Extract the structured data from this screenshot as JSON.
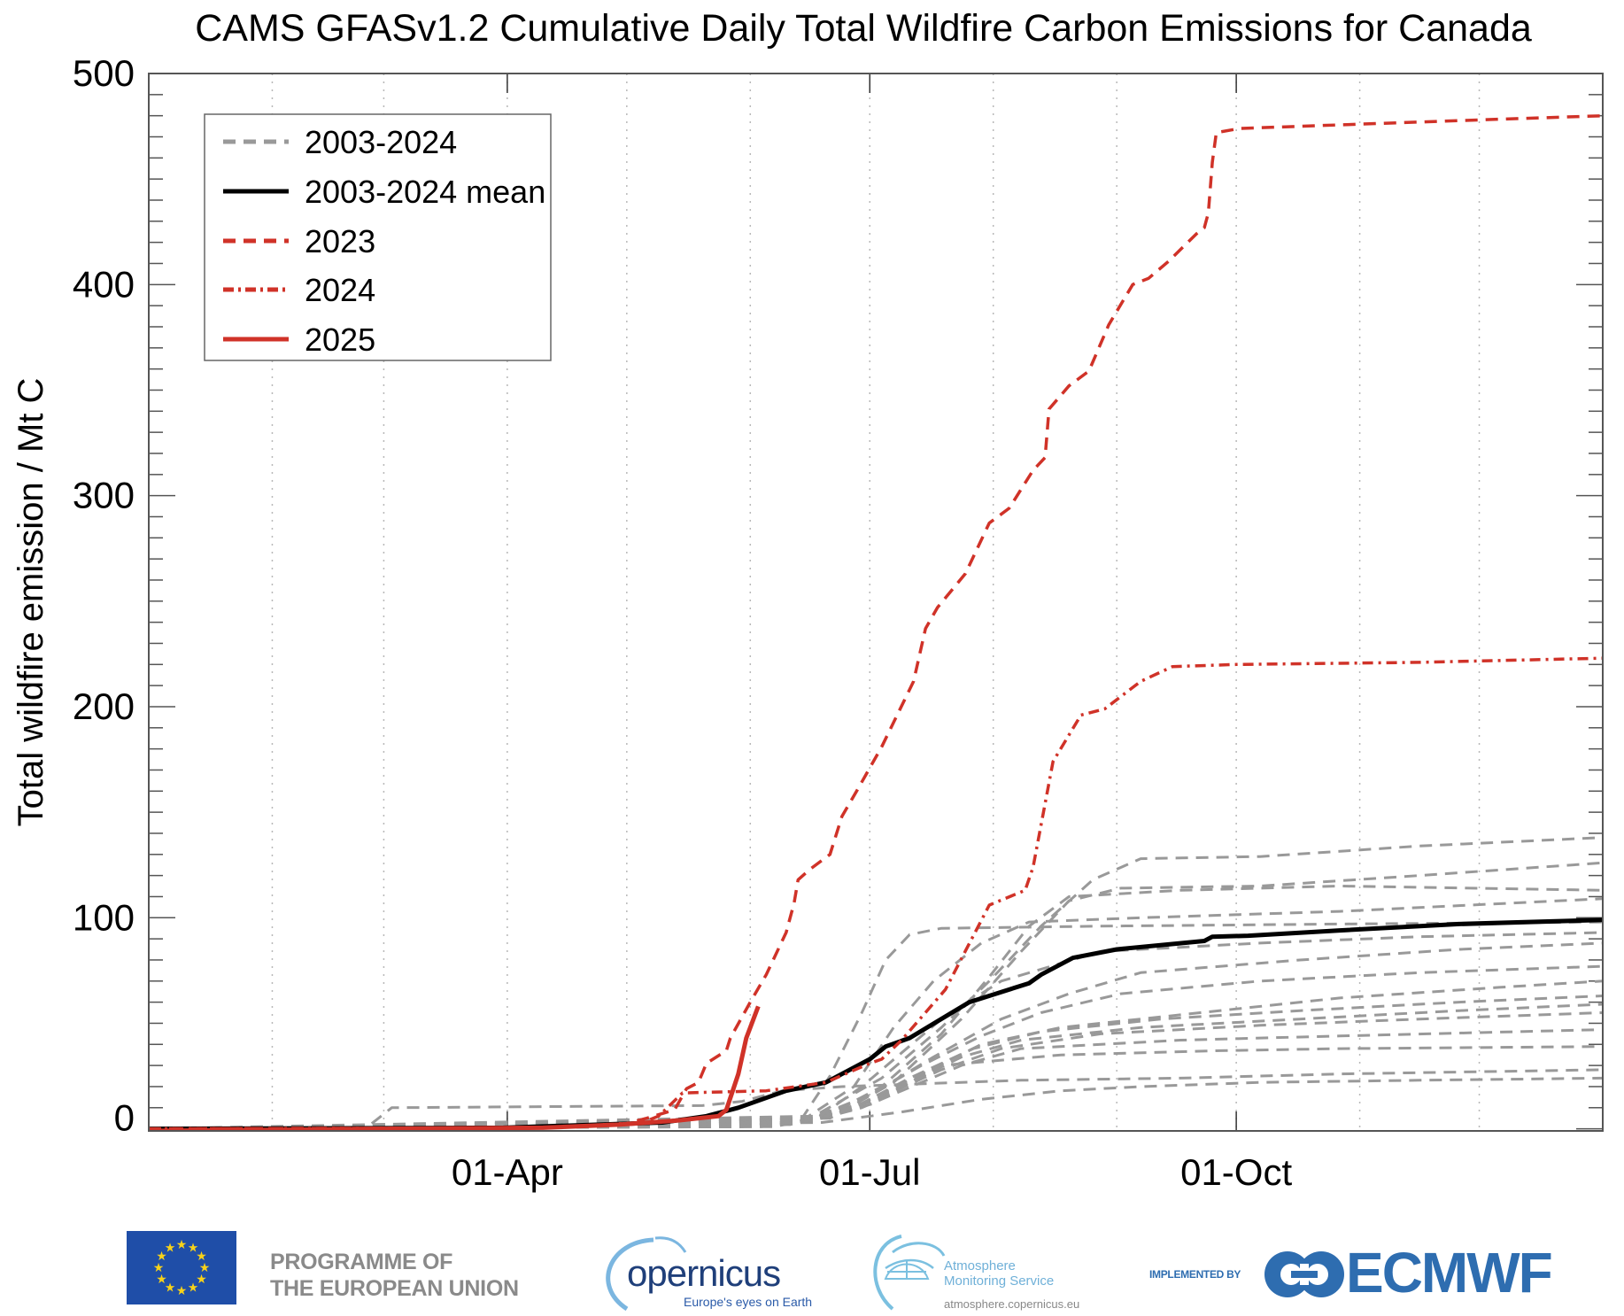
{
  "chart_data": {
    "type": "line",
    "title": "CAMS GFASv1.2 Cumulative Daily Total Wildfire Carbon Emissions for Canada",
    "xlabel": "",
    "ylabel": "Total wildfire emission / Mt C",
    "x_unit": "day of year",
    "xlim": [
      1,
      366
    ],
    "ylim": [
      -1,
      500
    ],
    "y_major_ticks": [
      0,
      100,
      200,
      300,
      400,
      500
    ],
    "y_tick_labels": [
      "0",
      "100",
      "200",
      "300",
      "400",
      "500"
    ],
    "y_minor_step": 10,
    "x_major_ticks": [
      {
        "day": 91,
        "label": "01-Apr"
      },
      {
        "day": 182,
        "label": "01-Jul"
      },
      {
        "day": 274,
        "label": "01-Oct"
      }
    ],
    "x_grid_days": [
      32,
      60,
      91,
      121,
      152,
      182,
      213,
      244,
      274,
      305,
      335
    ],
    "grid": "vertical dotted monthly",
    "legend": {
      "placement": "top-left",
      "entries": [
        {
          "label": "2003-2024",
          "style": "dashed",
          "color": "#999999"
        },
        {
          "label": "2003-2024 mean",
          "style": "solid",
          "color": "#000000"
        },
        {
          "label": "2023",
          "style": "dashed",
          "color": "#d03228"
        },
        {
          "label": "2024",
          "style": "dashdot",
          "color": "#d03228"
        },
        {
          "label": "2025",
          "style": "solid",
          "color": "#d03228"
        }
      ]
    },
    "series": [
      {
        "name": "2003-2024",
        "style": "dashed",
        "color": "#999999",
        "x": [
          1,
          56,
          62,
          100,
          140,
          150,
          160,
          175,
          190,
          220,
          260,
          300,
          366
        ],
        "y": [
          0,
          1,
          10,
          10.5,
          11,
          13,
          18,
          20,
          21,
          23,
          24,
          26,
          28
        ]
      },
      {
        "name": "2003-2024",
        "style": "dashed",
        "color": "#999999",
        "x": [
          1,
          150,
          165,
          175,
          183,
          190,
          200,
          230,
          270,
          300,
          366
        ],
        "y": [
          0,
          1,
          4,
          8,
          12,
          20,
          30,
          35,
          37,
          38,
          39
        ]
      },
      {
        "name": "2003-2024",
        "style": "dashed",
        "color": "#999999",
        "x": [
          1,
          155,
          170,
          180,
          190,
          205,
          220,
          260,
          300,
          366
        ],
        "y": [
          0,
          1,
          5,
          10,
          18,
          30,
          38,
          42,
          44,
          47
        ]
      },
      {
        "name": "2003-2024",
        "style": "dashed",
        "color": "#999999",
        "x": [
          1,
          158,
          172,
          185,
          200,
          215,
          240,
          280,
          320,
          366
        ],
        "y": [
          0,
          1,
          6,
          15,
          28,
          38,
          45,
          49,
          52,
          55
        ]
      },
      {
        "name": "2003-2024",
        "style": "dashed",
        "color": "#999999",
        "x": [
          1,
          160,
          175,
          190,
          205,
          220,
          250,
          290,
          330,
          366
        ],
        "y": [
          0,
          2,
          8,
          20,
          34,
          42,
          48,
          52,
          56,
          59
        ]
      },
      {
        "name": "2003-2024",
        "style": "dashed",
        "color": "#999999",
        "x": [
          1,
          162,
          178,
          192,
          208,
          225,
          255,
          290,
          330,
          366
        ],
        "y": [
          0,
          2,
          10,
          24,
          38,
          46,
          52,
          56,
          60,
          63
        ]
      },
      {
        "name": "2003-2024",
        "style": "dashed",
        "color": "#999999",
        "x": [
          1,
          163,
          180,
          195,
          210,
          230,
          260,
          300,
          340,
          366
        ],
        "y": [
          0,
          3,
          12,
          26,
          40,
          48,
          54,
          62,
          67,
          70
        ]
      },
      {
        "name": "2003-2024",
        "style": "dashed",
        "color": "#999999",
        "x": [
          1,
          165,
          180,
          195,
          210,
          225,
          245,
          280,
          320,
          366
        ],
        "y": [
          0,
          3,
          14,
          30,
          44,
          55,
          64,
          70,
          74,
          77
        ]
      },
      {
        "name": "2003-2024",
        "style": "dashed",
        "color": "#999999",
        "x": [
          1,
          166,
          182,
          198,
          215,
          232,
          250,
          290,
          330,
          366
        ],
        "y": [
          0,
          4,
          16,
          34,
          52,
          64,
          74,
          80,
          85,
          88
        ]
      },
      {
        "name": "2003-2024",
        "style": "dashed",
        "color": "#999999",
        "x": [
          1,
          168,
          180,
          190,
          200,
          215,
          240,
          280,
          320,
          366
        ],
        "y": [
          0,
          4,
          20,
          36,
          52,
          70,
          84,
          88,
          91,
          93
        ]
      },
      {
        "name": "2003-2024",
        "style": "dashed",
        "color": "#999999",
        "x": [
          1,
          165,
          172,
          180,
          186,
          192,
          200,
          240,
          300,
          366
        ],
        "y": [
          0,
          5,
          25,
          55,
          80,
          92,
          95,
          96,
          97,
          98
        ]
      },
      {
        "name": "2003-2024",
        "style": "dashed",
        "color": "#999999",
        "x": [
          1,
          165,
          178,
          188,
          198,
          210,
          222,
          250,
          300,
          366
        ],
        "y": [
          0,
          4,
          20,
          48,
          70,
          88,
          98,
          100,
          103,
          109
        ]
      },
      {
        "name": "2003-2024",
        "style": "dashed",
        "color": "#999999",
        "x": [
          1,
          170,
          185,
          200,
          212,
          222,
          232,
          260,
          300,
          366
        ],
        "y": [
          0,
          5,
          20,
          45,
          72,
          96,
          110,
          113,
          115,
          113
        ]
      },
      {
        "name": "2003-2024",
        "style": "dashed",
        "color": "#999999",
        "x": [
          1,
          172,
          188,
          205,
          220,
          232,
          245,
          280,
          320,
          366
        ],
        "y": [
          0,
          5,
          22,
          52,
          84,
          108,
          114,
          115,
          120,
          126
        ]
      },
      {
        "name": "2003-2024",
        "style": "dashed",
        "color": "#999999",
        "x": [
          1,
          168,
          185,
          200,
          212,
          225,
          238,
          250,
          280,
          320,
          366
        ],
        "y": [
          0,
          6,
          24,
          48,
          70,
          96,
          118,
          128,
          129,
          134,
          138
        ]
      },
      {
        "name": "2003-2024",
        "style": "dashed",
        "color": "#999999",
        "x": [
          1,
          170,
          190,
          210,
          230,
          250,
          280,
          320,
          366
        ],
        "y": [
          0,
          3,
          8,
          14,
          18,
          20,
          22,
          23,
          24
        ]
      },
      {
        "name": "2003-2024 mean",
        "style": "solid",
        "color": "#000000",
        "x": [
          1,
          90,
          130,
          141,
          149,
          161,
          171,
          182,
          186,
          192,
          207,
          222,
          225,
          233,
          244,
          266,
          268,
          277,
          300,
          330,
          366
        ],
        "y": [
          0,
          0.5,
          3,
          6,
          10,
          18,
          22,
          33,
          39,
          43,
          60,
          69,
          73,
          81,
          85,
          89,
          91,
          91.5,
          94,
          97,
          99
        ]
      },
      {
        "name": "2023",
        "style": "dashed",
        "color": "#d03228",
        "x": [
          1,
          100,
          120,
          126,
          133,
          136,
          139,
          141,
          146,
          147,
          152,
          156,
          161,
          163,
          164,
          167,
          172,
          175,
          179,
          185,
          193,
          196,
          199,
          206,
          212,
          217,
          223,
          226,
          227,
          232,
          237,
          242,
          248,
          252,
          257,
          264,
          266,
          267,
          268,
          269,
          275,
          305,
          335,
          366
        ],
        "y": [
          0,
          0.5,
          2,
          5,
          9,
          19,
          22,
          31,
          37,
          43,
          60,
          73,
          93,
          107,
          118,
          123,
          130,
          148,
          161,
          181,
          212,
          237,
          247,
          263,
          287,
          294,
          312,
          318,
          341,
          352,
          359,
          381,
          400,
          403,
          411,
          424,
          427,
          434,
          458,
          472,
          474,
          476,
          478,
          480
        ]
      },
      {
        "name": "2024",
        "style": "dashdot",
        "color": "#d03228",
        "x": [
          1,
          100,
          125,
          129,
          135,
          156,
          171,
          182,
          185,
          190,
          201,
          212,
          221,
          223,
          228,
          235,
          241,
          250,
          258,
          274,
          320,
          366
        ],
        "y": [
          0,
          0.5,
          3,
          6,
          17,
          18,
          22,
          31,
          33,
          42,
          66,
          106,
          113,
          124,
          174,
          196,
          199,
          212,
          219,
          220,
          221,
          223
        ]
      },
      {
        "name": "2025",
        "style": "solid",
        "color": "#d03228",
        "x": [
          1,
          60,
          100,
          119,
          134,
          144,
          146,
          149,
          151,
          154
        ],
        "y": [
          -1,
          0,
          0.5,
          2,
          4,
          6,
          9,
          26,
          43,
          58
        ]
      }
    ]
  },
  "footer": {
    "eu_line1": "PROGRAMME OF",
    "eu_line2": "THE EUROPEAN UNION",
    "copernicus_word": "opernicus",
    "copernicus_tagline": "Europe's eyes on Earth",
    "cams_line1": "Atmosphere",
    "cams_line2": "Monitoring Service",
    "cams_url": "atmosphere.copernicus.eu",
    "implemented_by": "IMPLEMENTED BY",
    "ecmwf": "ECMWF"
  },
  "colors": {
    "red": "#d03228",
    "grey": "#999999",
    "black": "#000000",
    "eu_blue": "#1f4ea8",
    "eu_star": "#f7d21a",
    "ecmwf_blue": "#2e6db0",
    "copernicus_navy": "#1f3f7a",
    "cams_light_blue": "#6fb0d8"
  }
}
